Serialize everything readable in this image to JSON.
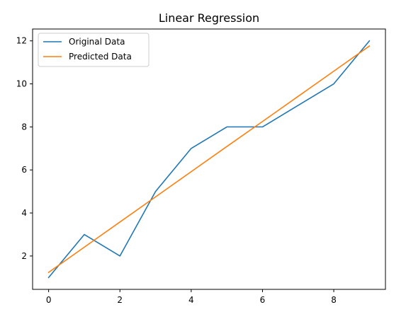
{
  "chart_data": {
    "type": "line",
    "title": "Linear Regression",
    "xlabel": "",
    "ylabel": "",
    "xlim": [
      -0.45,
      9.45
    ],
    "ylim": [
      0.45,
      12.55
    ],
    "xticks": [
      0,
      2,
      4,
      6,
      8
    ],
    "yticks": [
      2,
      4,
      6,
      8,
      10,
      12
    ],
    "grid": false,
    "legend_position": "top-left",
    "x": [
      0,
      1,
      2,
      3,
      4,
      5,
      6,
      7,
      8,
      9
    ],
    "series": [
      {
        "name": "Original Data",
        "color": "#1f77b4",
        "values": [
          1,
          3,
          2,
          5,
          7,
          8,
          8,
          9,
          10,
          12
        ]
      },
      {
        "name": "Predicted Data",
        "color": "#ff7f0e",
        "values": [
          1.24,
          2.41,
          3.58,
          4.75,
          5.92,
          7.09,
          8.25,
          9.42,
          10.59,
          11.76
        ]
      }
    ]
  }
}
